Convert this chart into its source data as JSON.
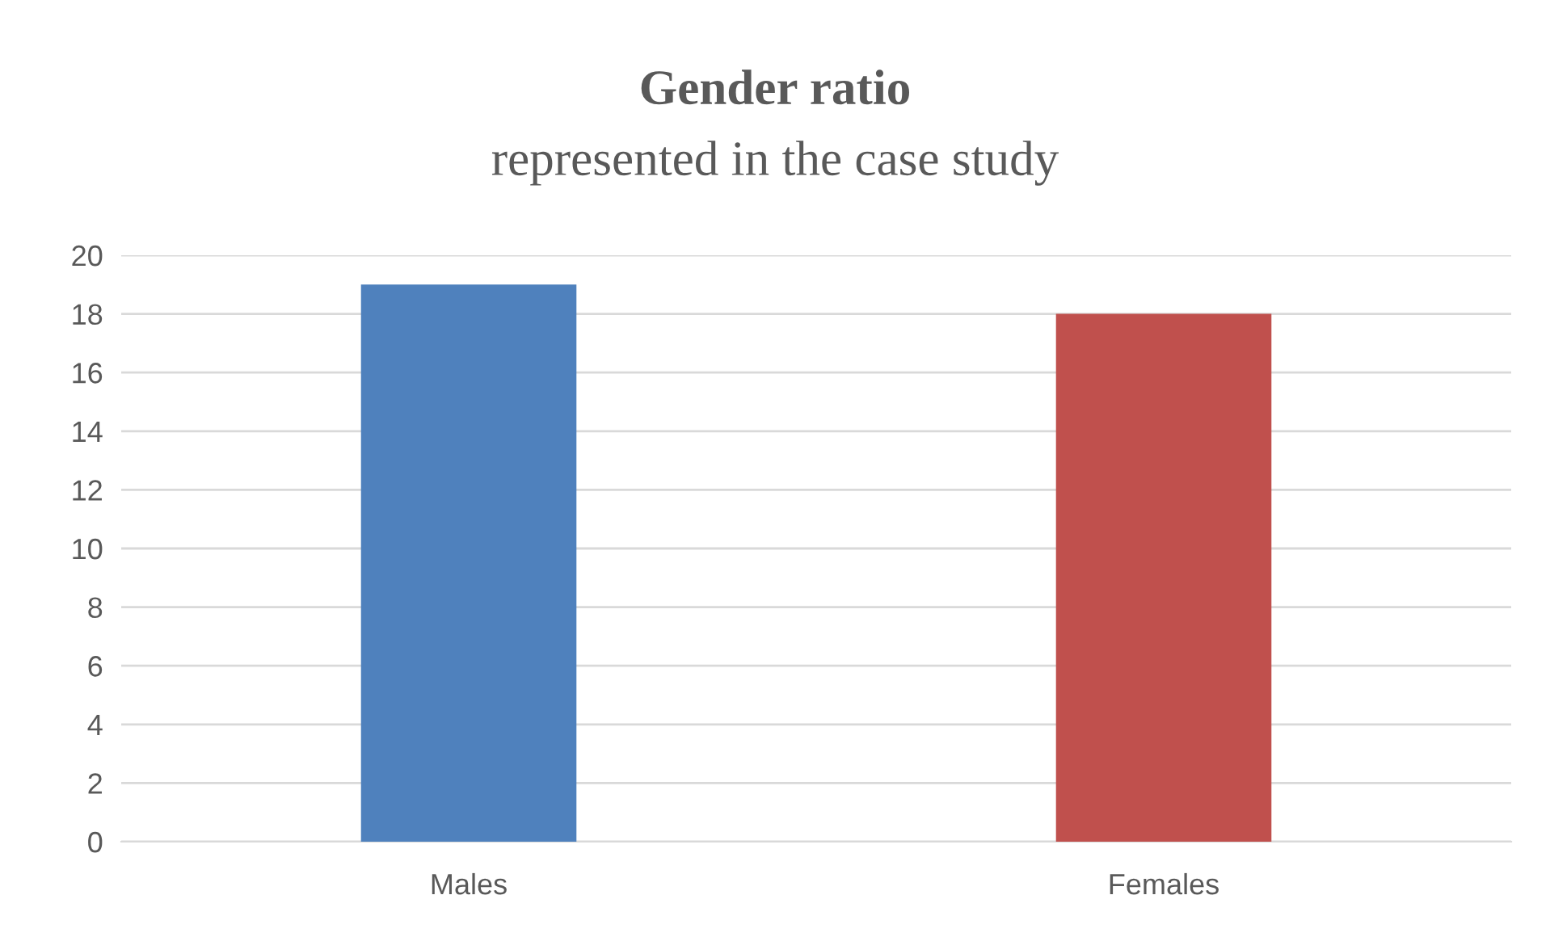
{
  "chart_data": {
    "type": "bar",
    "title": "Gender ratio",
    "subtitle": "represented in the case study",
    "categories": [
      "Males",
      "Females"
    ],
    "values": [
      19,
      18
    ],
    "colors": [
      "#4f81bd",
      "#c0504d"
    ],
    "ylim": [
      0,
      20
    ],
    "yticks": [
      0,
      2,
      4,
      6,
      8,
      10,
      12,
      14,
      16,
      18,
      20
    ],
    "grid": "y",
    "legend": false
  }
}
